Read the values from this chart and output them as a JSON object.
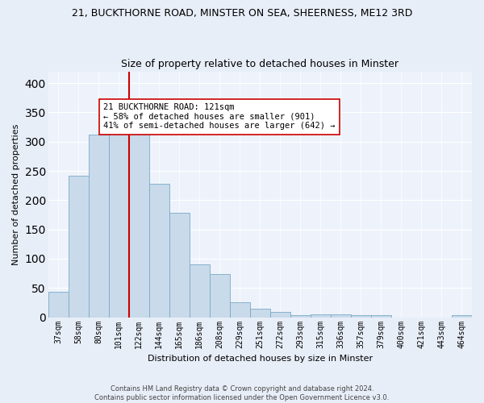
{
  "title": "21, BUCKTHORNE ROAD, MINSTER ON SEA, SHEERNESS, ME12 3RD",
  "subtitle": "Size of property relative to detached houses in Minster",
  "xlabel": "Distribution of detached houses by size in Minster",
  "ylabel": "Number of detached properties",
  "categories": [
    "37sqm",
    "58sqm",
    "80sqm",
    "101sqm",
    "122sqm",
    "144sqm",
    "165sqm",
    "186sqm",
    "208sqm",
    "229sqm",
    "251sqm",
    "272sqm",
    "293sqm",
    "315sqm",
    "336sqm",
    "357sqm",
    "379sqm",
    "400sqm",
    "421sqm",
    "443sqm",
    "464sqm"
  ],
  "values": [
    44,
    242,
    312,
    313,
    330,
    228,
    179,
    90,
    74,
    26,
    15,
    9,
    4,
    5,
    5,
    4,
    3,
    0,
    0,
    0,
    3
  ],
  "bar_color": "#c9daea",
  "bar_edge_color": "#7aaac8",
  "vline_x": 4,
  "vline_color": "#cc0000",
  "annotation_text": "21 BUCKTHORNE ROAD: 121sqm\n← 58% of detached houses are smaller (901)\n41% of semi-detached houses are larger (642) →",
  "annotation_box_color": "#ffffff",
  "annotation_box_edge": "#cc0000",
  "ylim": [
    0,
    420
  ],
  "yticks": [
    0,
    50,
    100,
    150,
    200,
    250,
    300,
    350,
    400
  ],
  "footer1": "Contains HM Land Registry data © Crown copyright and database right 2024.",
  "footer2": "Contains public sector information licensed under the Open Government Licence v3.0.",
  "bg_color": "#e8eef8",
  "plot_bg_color": "#eef3fb",
  "title_fontsize": 9,
  "subtitle_fontsize": 9,
  "ylabel_fontsize": 8,
  "xlabel_fontsize": 8,
  "tick_fontsize": 7,
  "annotation_fontsize": 7.5,
  "footer_fontsize": 6
}
